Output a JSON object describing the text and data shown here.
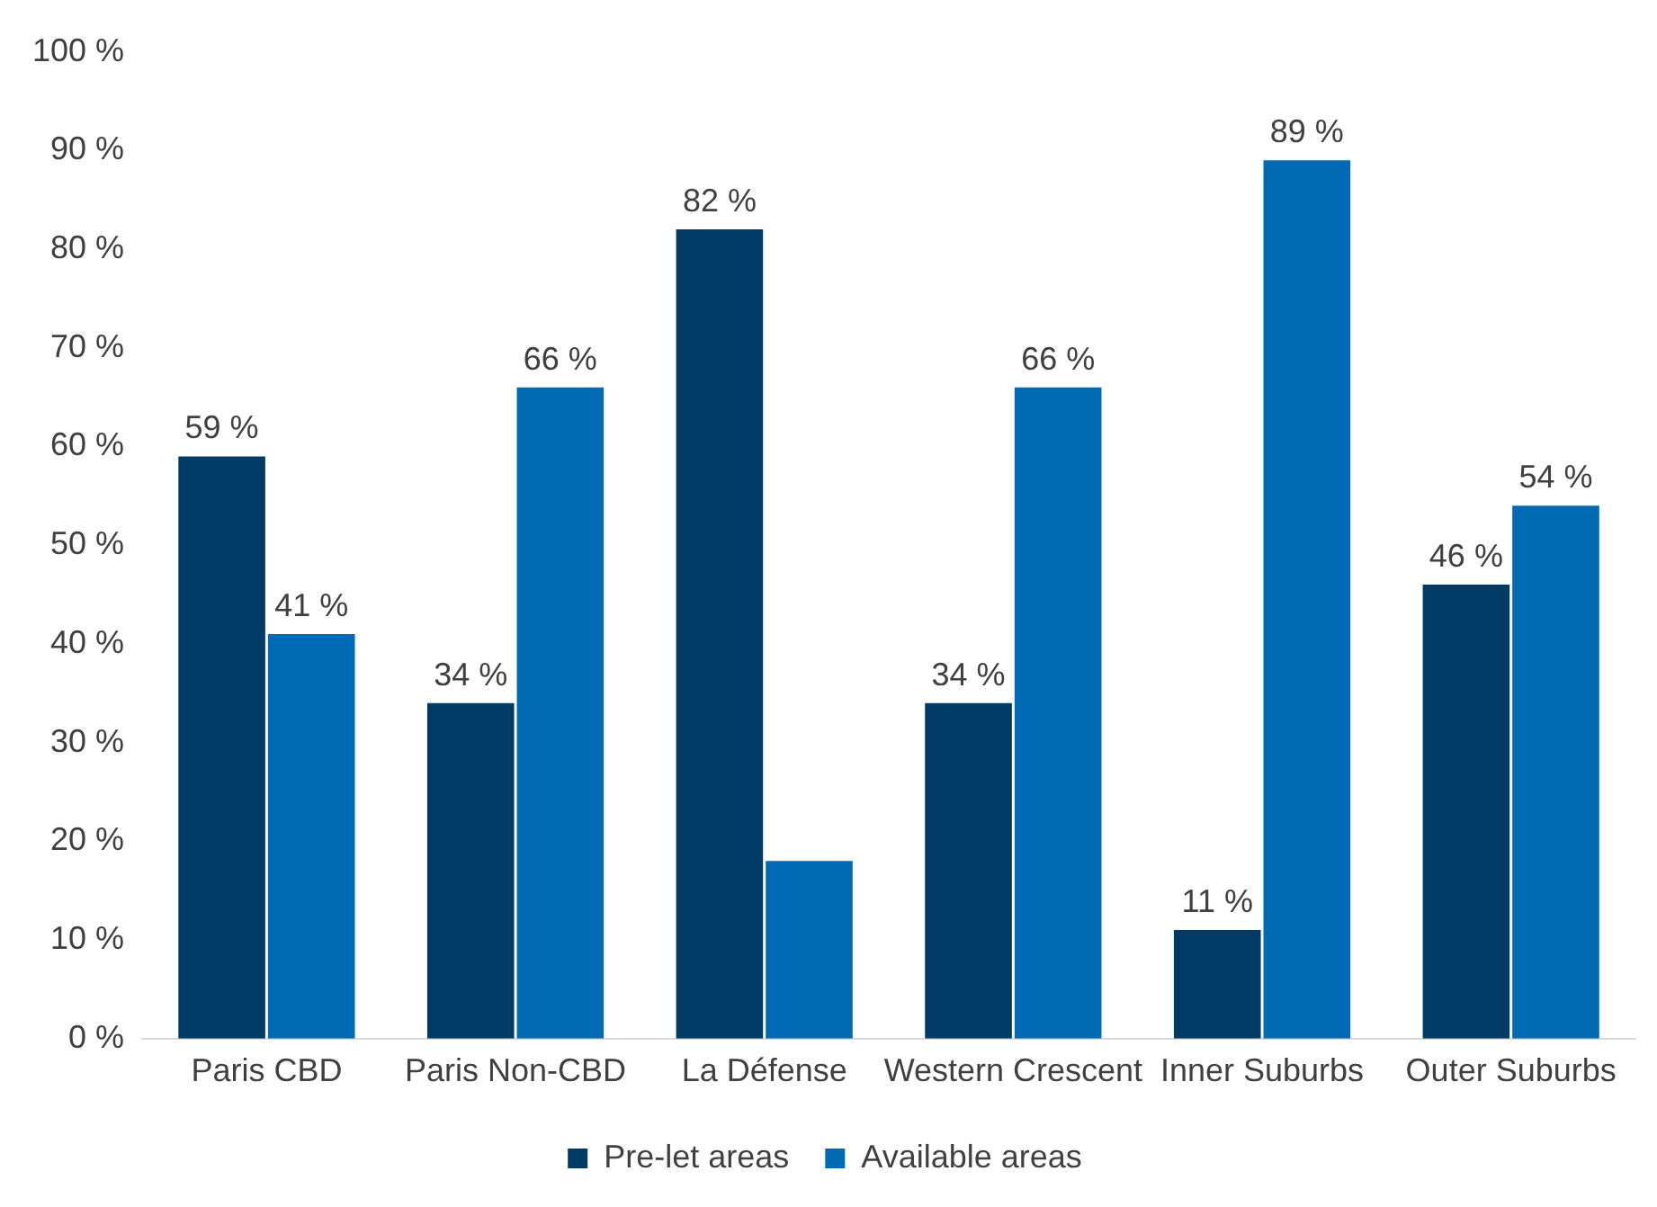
{
  "chart_data": {
    "type": "bar",
    "categories": [
      "Paris CBD",
      "Paris Non-CBD",
      "La Défense",
      "Western Crescent",
      "Inner Suburbs",
      "Outer Suburbs"
    ],
    "series": [
      {
        "name": "Pre-let areas",
        "color": "#003b66",
        "values": [
          59,
          34,
          82,
          34,
          11,
          46
        ],
        "value_labels": [
          "59 %",
          "34 %",
          "82 %",
          "34 %",
          "11 %",
          "46 %"
        ]
      },
      {
        "name": "Available areas",
        "color": "#006ab5",
        "values": [
          41,
          66,
          18,
          66,
          89,
          54
        ],
        "value_labels": [
          "41 %",
          "66 %",
          null,
          "66 %",
          "89 %",
          "54 %"
        ]
      }
    ],
    "ylim": [
      0,
      100
    ],
    "yticks": [
      {
        "value": 0,
        "label": "0 %"
      },
      {
        "value": 10,
        "label": "10 %"
      },
      {
        "value": 20,
        "label": "20 %"
      },
      {
        "value": 30,
        "label": "30 %"
      },
      {
        "value": 40,
        "label": "40 %"
      },
      {
        "value": 50,
        "label": "50 %"
      },
      {
        "value": 60,
        "label": "60 %"
      },
      {
        "value": 70,
        "label": "70 %"
      },
      {
        "value": 80,
        "label": "80 %"
      },
      {
        "value": 90,
        "label": "90 %"
      },
      {
        "value": 100,
        "label": "100 %"
      }
    ],
    "grid": false,
    "legend": "bottom"
  }
}
